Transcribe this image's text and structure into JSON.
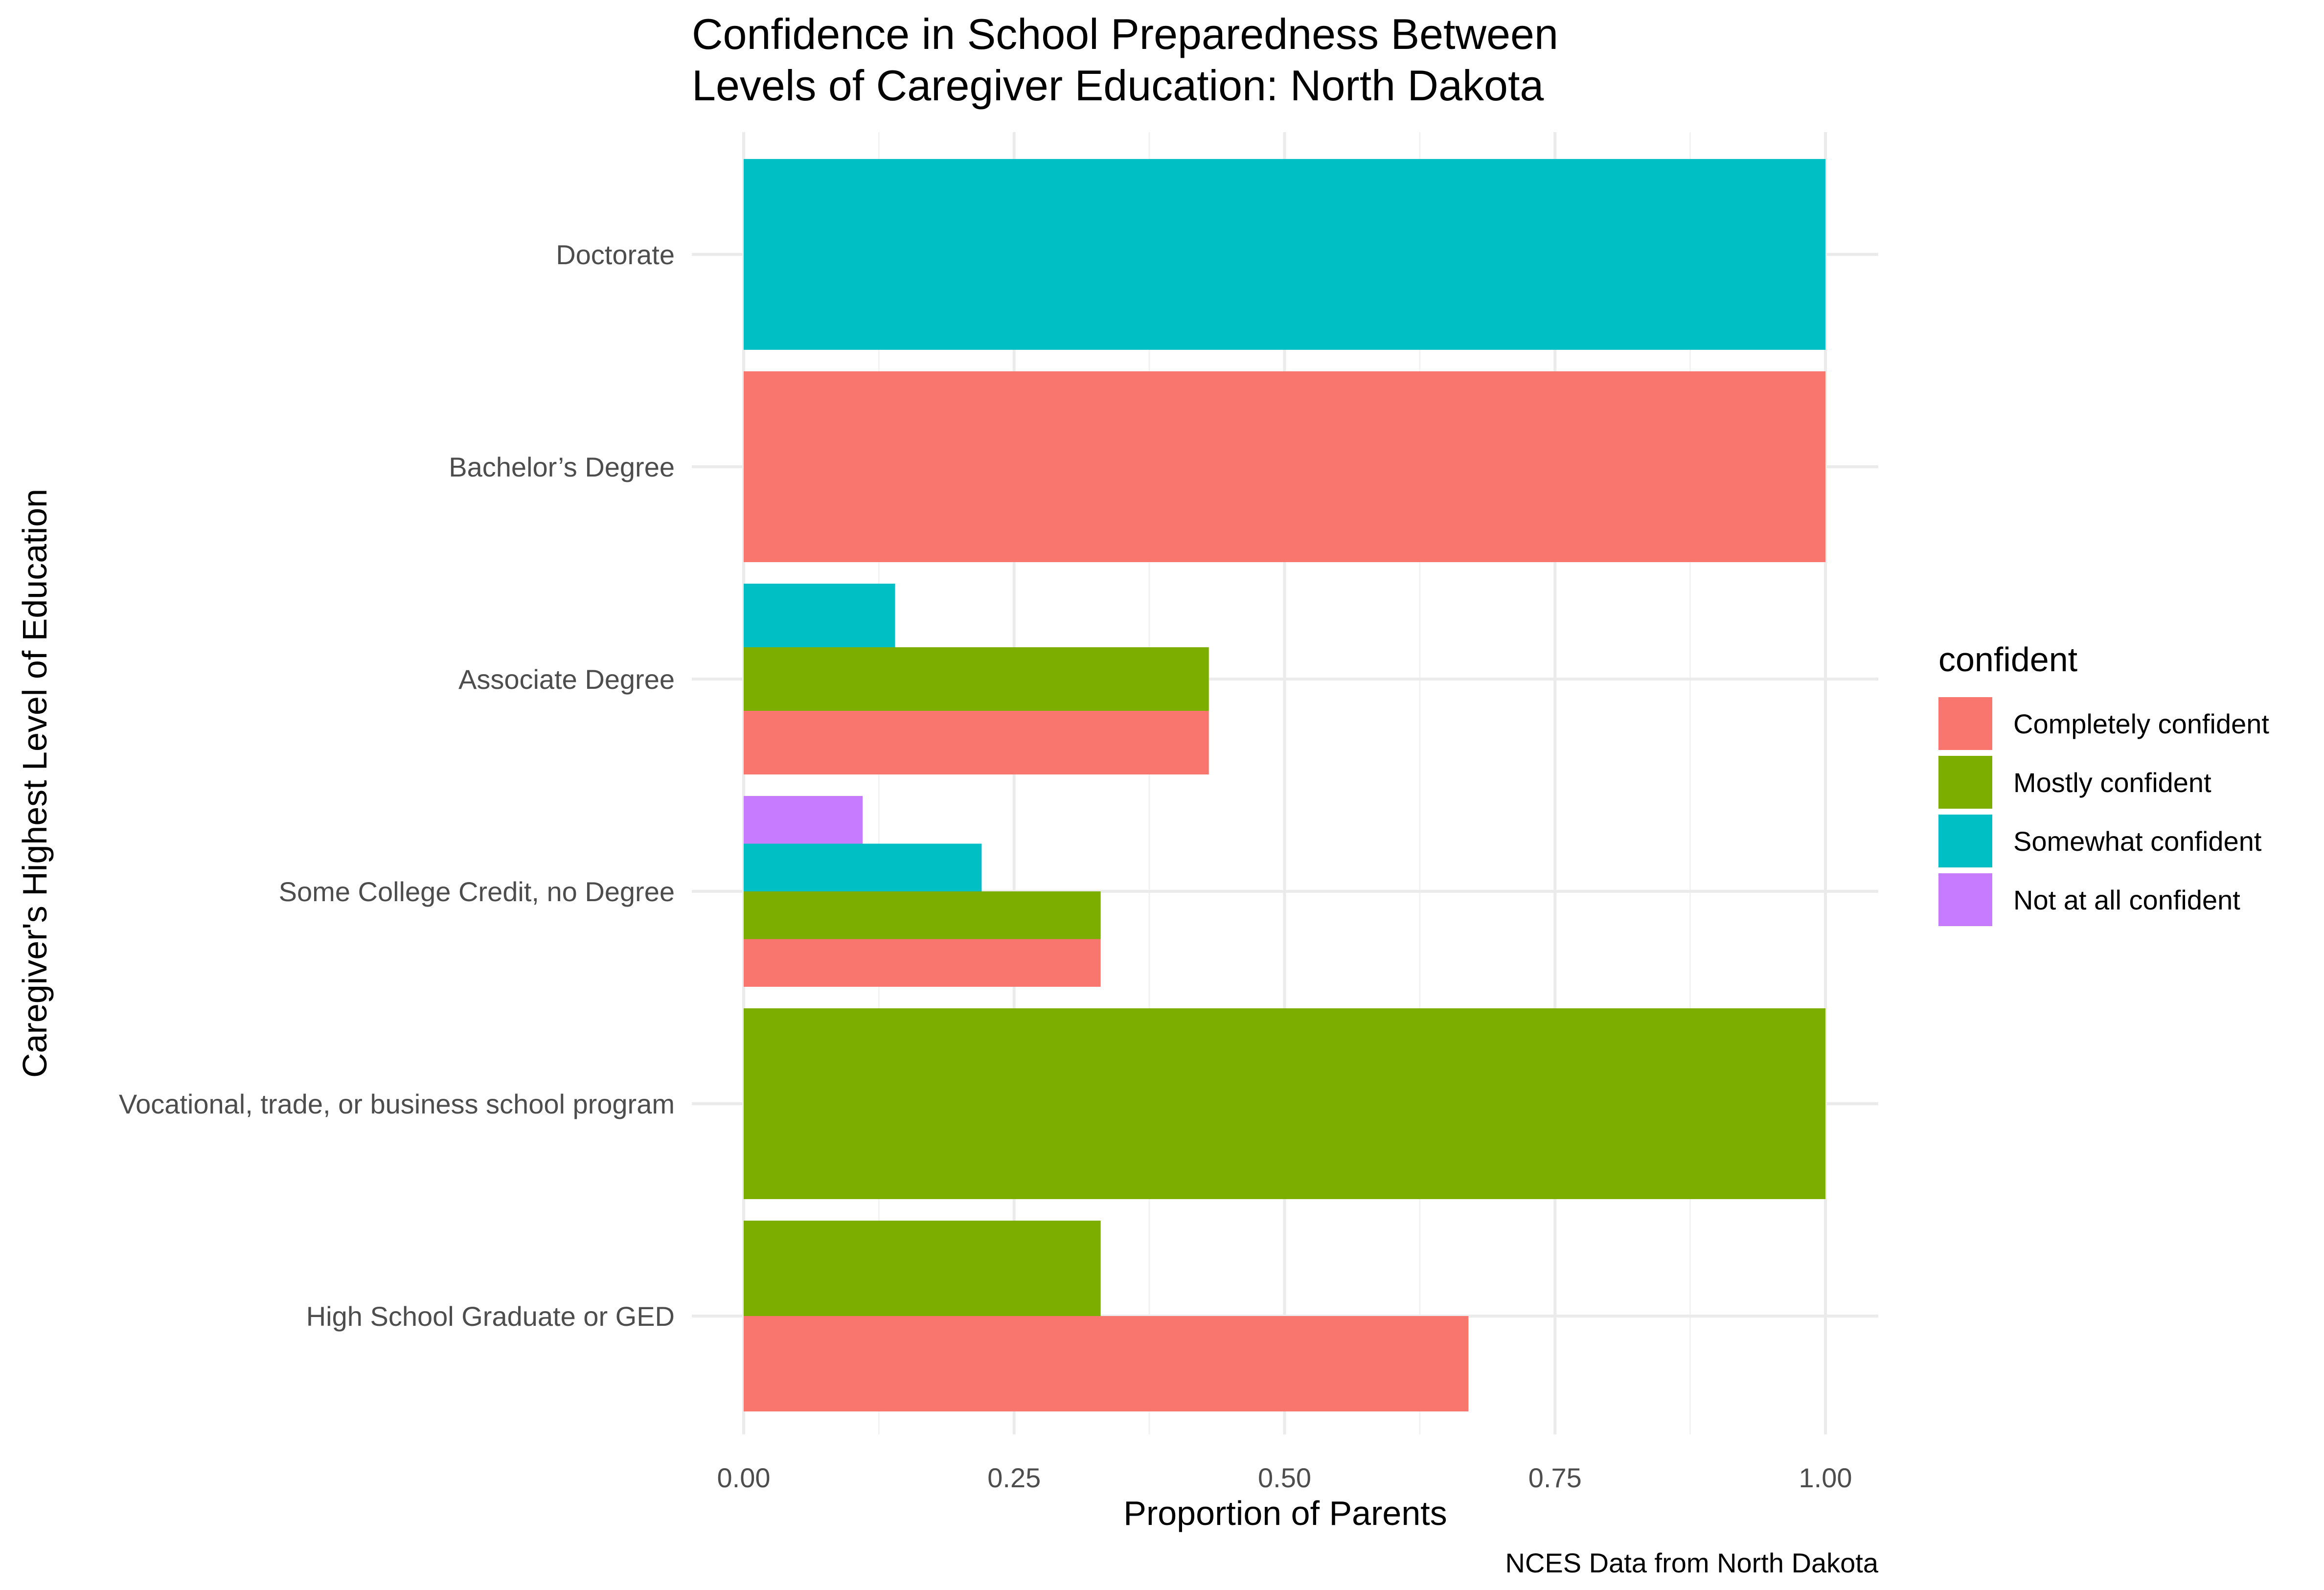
{
  "chart_data": {
    "type": "bar",
    "orientation": "horizontal",
    "title": "Confidence in School Preparedness Between Levels of Caregiver Education: North Dakota",
    "title_lines": [
      "Confidence in School Preparedness Between",
      "Levels of Caregiver Education: North Dakota"
    ],
    "xlabel": "Proportion of Parents",
    "ylabel": "Caregiver's Highest Level of Education",
    "caption": "NCES Data from North Dakota",
    "xlim": [
      0,
      1
    ],
    "x_ticks": [
      0,
      0.25,
      0.5,
      0.75,
      1.0
    ],
    "x_tick_labels": [
      "0.00",
      "0.25",
      "0.50",
      "0.75",
      "1.00"
    ],
    "categories": [
      "High School Graduate or GED",
      "Vocational, trade, or business school program",
      "Some College Credit, no Degree",
      "Associate Degree",
      "Bachelor’s Degree",
      "Doctorate"
    ],
    "legend": {
      "title": "confident",
      "position": "right"
    },
    "grid": true,
    "series": [
      {
        "name": "Completely confident",
        "color": "#F8766D",
        "values": [
          0.67,
          null,
          0.33,
          0.43,
          1.0,
          null
        ]
      },
      {
        "name": "Mostly confident",
        "color": "#7CAE00",
        "values": [
          0.33,
          1.0,
          0.33,
          0.43,
          null,
          null
        ]
      },
      {
        "name": "Somewhat confident",
        "color": "#00BFC4",
        "values": [
          null,
          null,
          0.22,
          0.14,
          null,
          1.0
        ]
      },
      {
        "name": "Not at all confident",
        "color": "#C77CFF",
        "values": [
          null,
          null,
          0.11,
          null,
          null,
          null
        ]
      }
    ]
  }
}
